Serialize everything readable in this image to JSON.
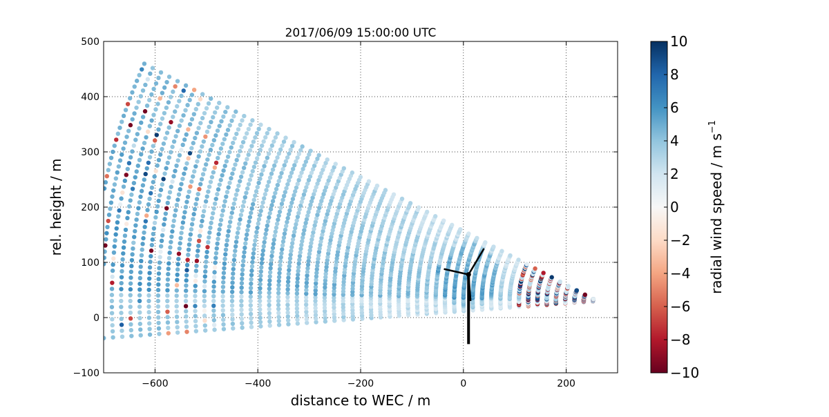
{
  "chart_data": {
    "type": "scatter",
    "title": "2017/06/09 15:00:00 UTC",
    "xlabel": "distance to WEC / m",
    "ylabel": "rel. height / m",
    "xlim": [
      -700,
      300
    ],
    "ylim": [
      -100,
      500
    ],
    "x_ticks": [
      -600,
      -400,
      -200,
      0,
      200
    ],
    "y_ticks": [
      -100,
      0,
      100,
      200,
      300,
      400,
      500
    ],
    "grid": true,
    "colorbar": {
      "label": "radial wind speed / m s",
      "label_superscript": "−1",
      "range": [
        -10,
        10
      ],
      "ticks": [
        10,
        8,
        6,
        4,
        2,
        0,
        -2,
        -4,
        -6,
        -8,
        -10
      ],
      "tick_labels": [
        "10",
        "8",
        "6",
        "4",
        "2",
        "0",
        "−2",
        "−4",
        "−6",
        "−8",
        "−10"
      ],
      "colormap": [
        "#67001f",
        "#b2182b",
        "#d6604d",
        "#f4a582",
        "#fddbc7",
        "#f7f7f7",
        "#d1e5f0",
        "#92c5de",
        "#4393c3",
        "#2166ac",
        "#053061"
      ]
    },
    "scan": {
      "origin": [
        260,
        30
      ],
      "elevation_deg_range": [
        -4,
        26
      ],
      "n_beams": 46,
      "range_gate_spacing_m": 18,
      "range_start_m": 8,
      "max_range_m": 980
    },
    "turbine": {
      "hub": [
        10,
        78
      ],
      "tower_base": [
        10,
        -48
      ],
      "blade_tips": [
        [
          40,
          125
        ],
        [
          -38,
          88
        ],
        [
          14,
          30
        ]
      ]
    }
  }
}
